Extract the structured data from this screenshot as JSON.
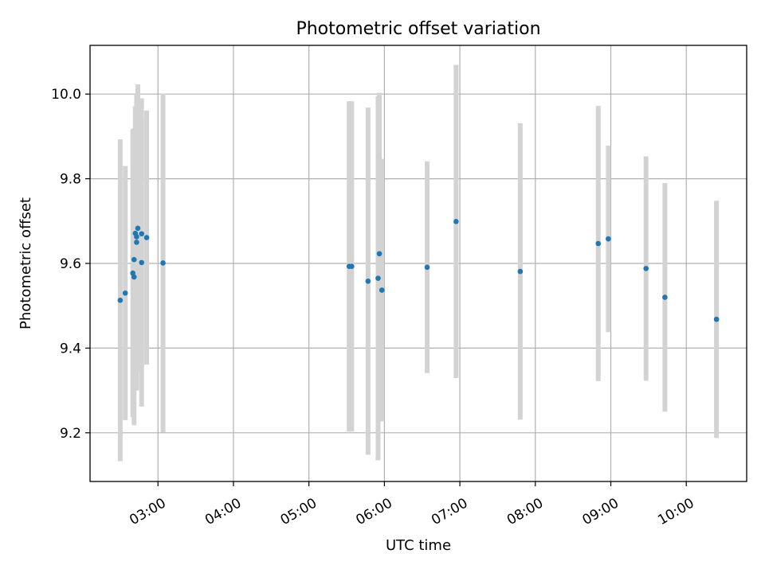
{
  "chart_data": {
    "type": "scatter",
    "title": "Photometric offset variation",
    "xlabel": "UTC time",
    "ylabel": "Photometric offset",
    "x_axis_type": "time",
    "xlim": [
      "02:06",
      "10:48"
    ],
    "ylim": [
      9.085,
      10.115
    ],
    "x_ticks": [
      "03:00",
      "04:00",
      "05:00",
      "06:00",
      "07:00",
      "08:00",
      "09:00",
      "10:00"
    ],
    "y_ticks": [
      "9.2",
      "9.4",
      "9.6",
      "9.8",
      "10.0"
    ],
    "grid": true,
    "legend": "none",
    "colors": {
      "points": "#1f77b4",
      "error_bars": "#d3d3d3",
      "grid": "#b0b0b0"
    },
    "series": [
      {
        "points": [
          {
            "x": "02:30",
            "y": 9.513,
            "y_err": 0.38
          },
          {
            "x": "02:34",
            "y": 9.53,
            "y_err": 0.3
          },
          {
            "x": "02:40",
            "y": 9.577,
            "y_err": 0.34
          },
          {
            "x": "02:41",
            "y": 9.568,
            "y_err": 0.35
          },
          {
            "x": "02:41",
            "y": 9.609,
            "y_err": 0.31
          },
          {
            "x": "02:42",
            "y": 9.671,
            "y_err": 0.3
          },
          {
            "x": "02:43",
            "y": 9.663,
            "y_err": 0.3
          },
          {
            "x": "02:43",
            "y": 9.65,
            "y_err": 0.35
          },
          {
            "x": "02:44",
            "y": 9.683,
            "y_err": 0.34
          },
          {
            "x": "02:47",
            "y": 9.67,
            "y_err": 0.32
          },
          {
            "x": "02:47",
            "y": 9.602,
            "y_err": 0.34
          },
          {
            "x": "02:51",
            "y": 9.661,
            "y_err": 0.3
          },
          {
            "x": "03:04",
            "y": 9.601,
            "y_err": 0.4
          },
          {
            "x": "05:32",
            "y": 9.593,
            "y_err": 0.39
          },
          {
            "x": "05:34",
            "y": 9.593,
            "y_err": 0.39
          },
          {
            "x": "05:47",
            "y": 9.558,
            "y_err": 0.41
          },
          {
            "x": "05:55",
            "y": 9.565,
            "y_err": 0.43
          },
          {
            "x": "05:56",
            "y": 9.623,
            "y_err": 0.38
          },
          {
            "x": "05:58",
            "y": 9.537,
            "y_err": 0.31
          },
          {
            "x": "06:34",
            "y": 9.591,
            "y_err": 0.25
          },
          {
            "x": "06:57",
            "y": 9.699,
            "y_err": 0.37
          },
          {
            "x": "07:48",
            "y": 9.581,
            "y_err": 0.35
          },
          {
            "x": "08:50",
            "y": 9.647,
            "y_err": 0.325
          },
          {
            "x": "08:58",
            "y": 9.658,
            "y_err": 0.22
          },
          {
            "x": "09:28",
            "y": 9.588,
            "y_err": 0.265
          },
          {
            "x": "09:43",
            "y": 9.52,
            "y_err": 0.27
          },
          {
            "x": "10:24",
            "y": 9.468,
            "y_err": 0.28
          }
        ]
      }
    ]
  }
}
